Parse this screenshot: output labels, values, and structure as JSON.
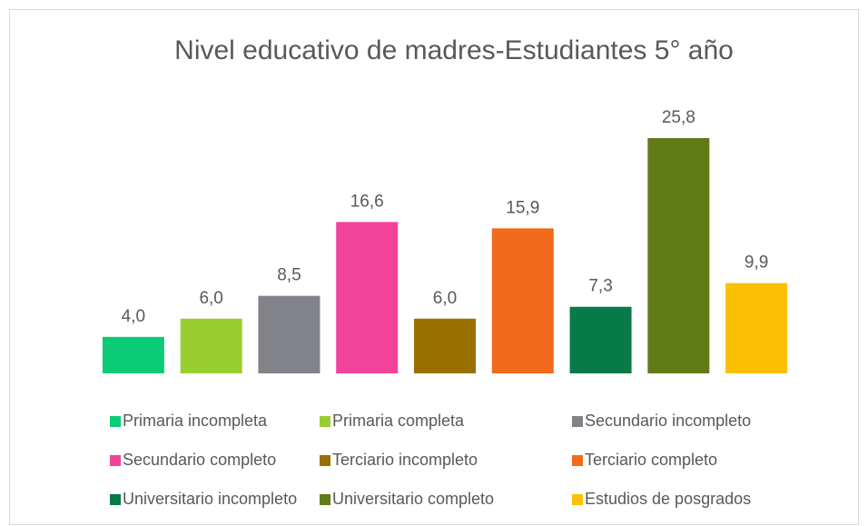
{
  "chart_data": {
    "type": "bar",
    "title": "Nivel educativo de madres-Estudiantes 5° año",
    "categories": [
      "Primaria incompleta",
      "Primaria completa",
      "Secundario incompleto",
      "Secundario completo",
      "Terciario incompleto",
      "Terciario completo",
      "Universitario incompleto",
      "Universitario completo",
      "Estudios de posgrados"
    ],
    "values": [
      4.0,
      6.0,
      8.5,
      16.6,
      6.0,
      15.9,
      7.3,
      25.8,
      9.9
    ],
    "value_labels": [
      "4,0",
      "6,0",
      "8,5",
      "16,6",
      "6,0",
      "15,9",
      "7,3",
      "25,8",
      "9,9"
    ],
    "colors": [
      "#0ccb76",
      "#9acd32",
      "#828289",
      "#f2439a",
      "#9a7000",
      "#f26a1b",
      "#077a48",
      "#617b19",
      "#fbc003"
    ],
    "legend": "bottom"
  }
}
